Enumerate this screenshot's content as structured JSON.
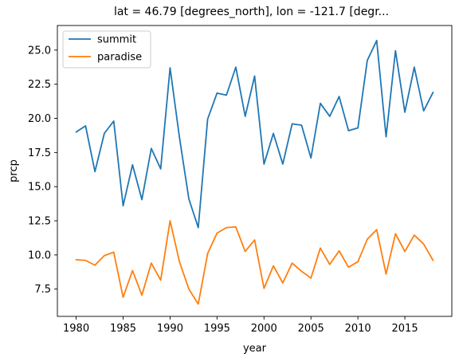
{
  "chart_data": {
    "type": "line",
    "title": "lat = 46.79 [degrees_north], lon = -121.7 [degr...",
    "xlabel": "year",
    "ylabel": "prcp",
    "xlim": [
      1978,
      2020
    ],
    "ylim": [
      5.5,
      26.8
    ],
    "xticks": [
      1980,
      1985,
      1990,
      1995,
      2000,
      2005,
      2010,
      2015
    ],
    "xtick_labels": [
      "1980",
      "1985",
      "1990",
      "1995",
      "2000",
      "2005",
      "2010",
      "2015"
    ],
    "yticks": [
      7.5,
      10.0,
      12.5,
      15.0,
      17.5,
      20.0,
      22.5,
      25.0
    ],
    "ytick_labels": [
      "7.5",
      "10.0",
      "12.5",
      "15.0",
      "17.5",
      "20.0",
      "22.5",
      "25.0"
    ],
    "grid": false,
    "legend_position": "upper-left",
    "x": [
      1980,
      1981,
      1982,
      1983,
      1984,
      1985,
      1986,
      1987,
      1988,
      1989,
      1990,
      1991,
      1992,
      1993,
      1994,
      1995,
      1996,
      1997,
      1998,
      1999,
      2000,
      2001,
      2002,
      2003,
      2004,
      2005,
      2006,
      2007,
      2008,
      2009,
      2010,
      2011,
      2012,
      2013,
      2014,
      2015,
      2016,
      2017,
      2018
    ],
    "series": [
      {
        "name": "summit",
        "color": "#1f77b4",
        "values": [
          19.0,
          19.45,
          16.1,
          18.9,
          19.8,
          13.6,
          16.6,
          14.05,
          17.8,
          16.3,
          23.7,
          18.6,
          14.1,
          12.0,
          19.95,
          21.85,
          21.7,
          23.75,
          20.15,
          23.1,
          16.65,
          18.9,
          16.65,
          19.6,
          19.5,
          17.1,
          21.1,
          20.15,
          21.6,
          19.1,
          19.3,
          24.25,
          25.7,
          18.65,
          24.95,
          20.45,
          23.75,
          20.55,
          21.9
        ]
      },
      {
        "name": "paradise",
        "color": "#ff7f0e",
        "values": [
          9.65,
          9.6,
          9.25,
          9.95,
          10.2,
          6.9,
          8.85,
          7.05,
          9.4,
          8.15,
          12.5,
          9.5,
          7.5,
          6.4,
          10.1,
          11.6,
          12.0,
          12.05,
          10.25,
          11.1,
          7.55,
          9.2,
          7.95,
          9.4,
          8.8,
          8.3,
          10.5,
          9.3,
          10.3,
          9.1,
          9.5,
          11.15,
          11.85,
          8.6,
          11.55,
          10.25,
          11.45,
          10.8,
          9.6
        ]
      }
    ]
  }
}
